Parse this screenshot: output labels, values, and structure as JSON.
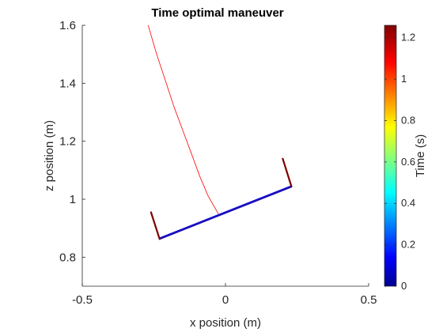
{
  "chart_data": {
    "type": "line",
    "title": "Time optimal maneuver",
    "xlabel": "x position (m)",
    "ylabel": "z position (m)",
    "xlim": [
      -0.5,
      0.5
    ],
    "ylim": [
      0.7,
      1.6
    ],
    "xticks": [
      -0.5,
      0,
      0.5
    ],
    "xtick_labels": [
      "-0.5",
      "0",
      "0.5"
    ],
    "yticks": [
      0.8,
      1.0,
      1.2,
      1.4,
      1.6
    ],
    "ytick_labels": [
      "0.8",
      "1",
      "1.2",
      "1.4",
      "1.6"
    ],
    "grid": false,
    "colorbar": {
      "label": "Time (s)",
      "colormap": "jet",
      "range": [
        0,
        1.26
      ],
      "ticks": [
        0,
        0.2,
        0.4,
        0.6,
        0.8,
        1,
        1.2
      ],
      "tick_labels": [
        "0",
        "0.2",
        "0.4",
        "0.6",
        "0.8",
        "1",
        "1.2"
      ]
    },
    "series": [
      {
        "kind": "trajectory",
        "color": "#ff0000",
        "x": [
          -0.27,
          -0.24,
          -0.21,
          -0.18,
          -0.15,
          -0.12,
          -0.09,
          -0.06,
          -0.025
        ],
        "y": [
          1.6,
          1.5,
          1.41,
          1.32,
          1.24,
          1.16,
          1.08,
          1.01,
          0.95
        ]
      },
      {
        "kind": "body-initial",
        "color": "#0000ff",
        "x": [
          -0.23,
          0.23
        ],
        "y": [
          0.865,
          1.045
        ]
      },
      {
        "kind": "body-final",
        "color": "#1c0fb0",
        "x": [
          -0.23,
          0.23
        ],
        "y": [
          0.863,
          1.043
        ]
      },
      {
        "kind": "arm-left",
        "color": "#800000",
        "x": [
          -0.26,
          -0.23
        ],
        "y": [
          0.955,
          0.863
        ]
      },
      {
        "kind": "arm-right",
        "color": "#800000",
        "x": [
          0.2,
          0.23
        ],
        "y": [
          1.14,
          1.045
        ]
      }
    ]
  }
}
